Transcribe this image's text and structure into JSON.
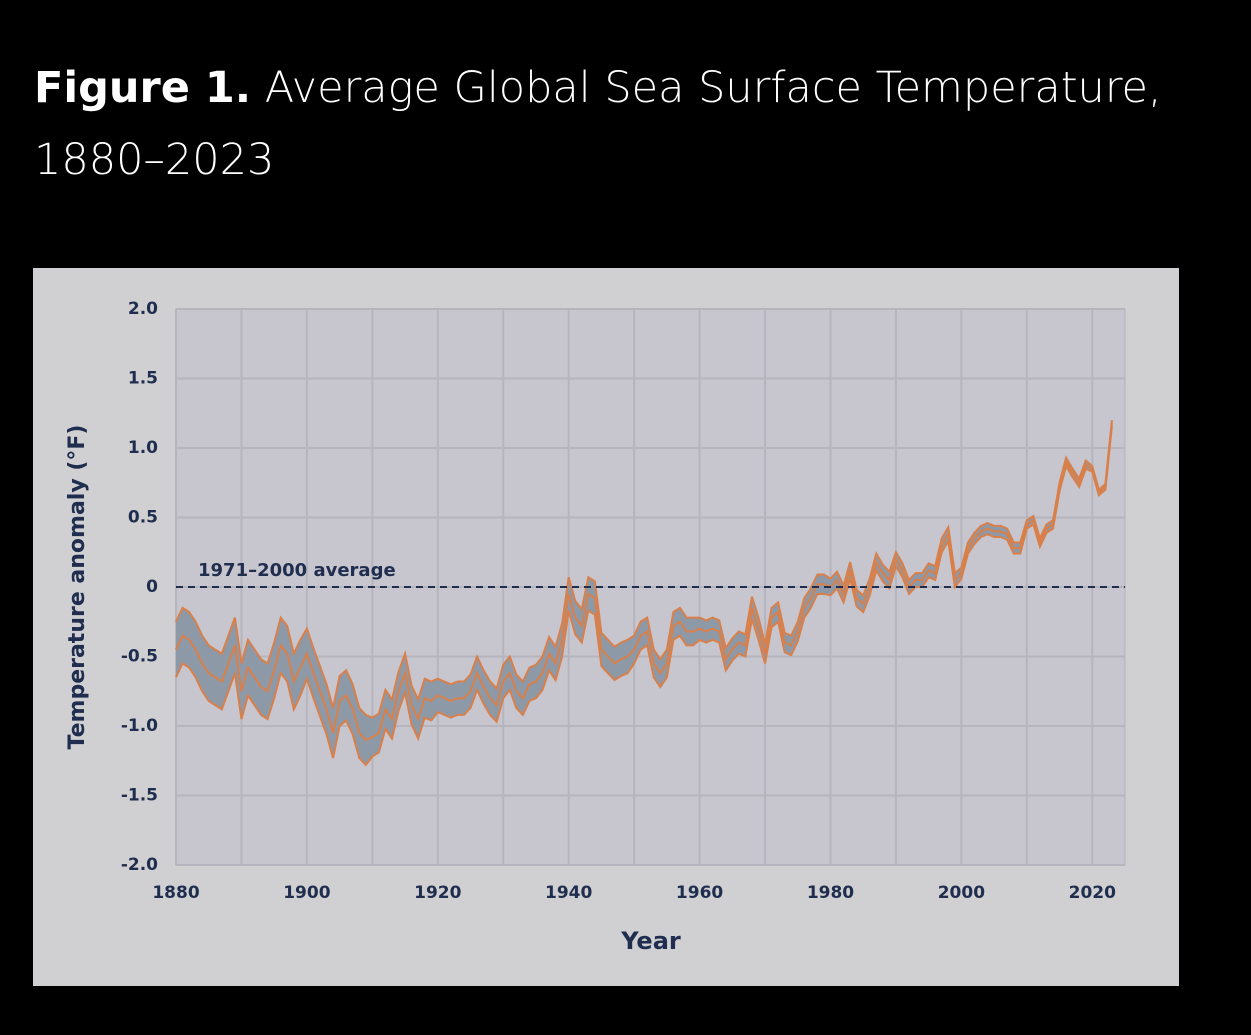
{
  "chart_data": {
    "type": "band-line",
    "title_prefix": "Figure 1.",
    "title": "Average Global Sea Surface Temperature, 1880–2023",
    "xlabel": "Year",
    "ylabel": "Temperature anomaly (°F)",
    "reference_line": {
      "value": 0,
      "label": "1971–2000 average"
    },
    "xlim": [
      1880,
      2025
    ],
    "ylim": [
      -2,
      2
    ],
    "xticks": [
      1880,
      1900,
      1920,
      1940,
      1960,
      1980,
      2000,
      2020
    ],
    "xminor": [
      1890,
      1910,
      1930,
      1950,
      1970,
      1990,
      2010
    ],
    "yticks": [
      {
        "value": -2,
        "label": "-2.0"
      },
      -1.5,
      {
        "value": -1,
        "label": "-1.0"
      },
      -0.5,
      0,
      0.5,
      {
        "value": 1,
        "label": "1.0"
      },
      1.5,
      {
        "value": 2,
        "label": "2.0"
      }
    ],
    "grid": true,
    "band_color": "#8e99a8",
    "x": [
      1880,
      1881,
      1882,
      1883,
      1884,
      1885,
      1886,
      1887,
      1888,
      1889,
      1890,
      1891,
      1892,
      1893,
      1894,
      1895,
      1896,
      1897,
      1898,
      1899,
      1900,
      1901,
      1902,
      1903,
      1904,
      1905,
      1906,
      1907,
      1908,
      1909,
      1910,
      1911,
      1912,
      1913,
      1914,
      1915,
      1916,
      1917,
      1918,
      1919,
      1920,
      1921,
      1922,
      1923,
      1924,
      1925,
      1926,
      1927,
      1928,
      1929,
      1930,
      1931,
      1932,
      1933,
      1934,
      1935,
      1936,
      1937,
      1938,
      1939,
      1940,
      1941,
      1942,
      1943,
      1944,
      1945,
      1946,
      1947,
      1948,
      1949,
      1950,
      1951,
      1952,
      1953,
      1954,
      1955,
      1956,
      1957,
      1958,
      1959,
      1960,
      1961,
      1962,
      1963,
      1964,
      1965,
      1966,
      1967,
      1968,
      1969,
      1970,
      1971,
      1972,
      1973,
      1974,
      1975,
      1976,
      1977,
      1978,
      1979,
      1980,
      1981,
      1982,
      1983,
      1984,
      1985,
      1986,
      1987,
      1988,
      1989,
      1990,
      1991,
      1992,
      1993,
      1994,
      1995,
      1996,
      1997,
      1998,
      1999,
      2000,
      2001,
      2002,
      2003,
      2004,
      2005,
      2006,
      2007,
      2008,
      2009,
      2010,
      2011,
      2012,
      2013,
      2014,
      2015,
      2016,
      2017,
      2018,
      2019,
      2020,
      2021,
      2022,
      2023
    ],
    "series": [
      {
        "color": "#d9804a",
        "values": [
          -0.45,
          -0.35,
          -0.38,
          -0.45,
          -0.55,
          -0.62,
          -0.65,
          -0.68,
          -0.55,
          -0.42,
          -0.75,
          -0.58,
          -0.65,
          -0.72,
          -0.75,
          -0.6,
          -0.42,
          -0.48,
          -0.68,
          -0.58,
          -0.48,
          -0.62,
          -0.75,
          -0.88,
          -1.05,
          -0.82,
          -0.78,
          -0.88,
          -1.05,
          -1.1,
          -1.08,
          -1.05,
          -0.88,
          -0.95,
          -0.75,
          -0.62,
          -0.85,
          -0.95,
          -0.8,
          -0.82,
          -0.78,
          -0.8,
          -0.82,
          -0.8,
          -0.8,
          -0.75,
          -0.62,
          -0.72,
          -0.8,
          -0.85,
          -0.68,
          -0.62,
          -0.75,
          -0.8,
          -0.7,
          -0.68,
          -0.62,
          -0.48,
          -0.55,
          -0.38,
          -0.05,
          -0.22,
          -0.28,
          -0.05,
          -0.08,
          -0.45,
          -0.5,
          -0.55,
          -0.52,
          -0.5,
          -0.45,
          -0.35,
          -0.32,
          -0.55,
          -0.62,
          -0.55,
          -0.28,
          -0.25,
          -0.32,
          -0.32,
          -0.3,
          -0.32,
          -0.3,
          -0.32,
          -0.52,
          -0.45,
          -0.4,
          -0.42,
          -0.15,
          -0.3,
          -0.48,
          -0.22,
          -0.18,
          -0.4,
          -0.42,
          -0.32,
          -0.15,
          -0.08,
          0.02,
          0.02,
          0.0,
          0.05,
          -0.05,
          0.12,
          -0.08,
          -0.12,
          0.0,
          0.18,
          0.1,
          0.05,
          0.2,
          0.12,
          0.0,
          0.05,
          0.05,
          0.12,
          0.1,
          0.3,
          0.38,
          0.05,
          0.1,
          0.28,
          0.35,
          0.4,
          0.42,
          0.4,
          0.4,
          0.38,
          0.28,
          0.28,
          0.45,
          0.48,
          0.32,
          0.42,
          0.45,
          0.72,
          0.9,
          0.82,
          0.75,
          0.88,
          0.85,
          0.68,
          0.72,
          1.18
        ]
      },
      {
        "color": "#d9804a",
        "values": [
          -0.25,
          -0.15,
          -0.18,
          -0.25,
          -0.35,
          -0.42,
          -0.45,
          -0.48,
          -0.35,
          -0.22,
          -0.55,
          -0.38,
          -0.45,
          -0.52,
          -0.55,
          -0.4,
          -0.22,
          -0.28,
          -0.48,
          -0.38,
          -0.3,
          -0.44,
          -0.57,
          -0.7,
          -0.87,
          -0.64,
          -0.6,
          -0.7,
          -0.87,
          -0.92,
          -0.94,
          -0.91,
          -0.74,
          -0.81,
          -0.61,
          -0.48,
          -0.71,
          -0.81,
          -0.66,
          -0.68,
          -0.66,
          -0.68,
          -0.7,
          -0.68,
          -0.68,
          -0.63,
          -0.5,
          -0.6,
          -0.68,
          -0.73,
          -0.56,
          -0.5,
          -0.63,
          -0.68,
          -0.58,
          -0.56,
          -0.5,
          -0.36,
          -0.43,
          -0.26,
          0.07,
          -0.1,
          -0.16,
          0.07,
          0.04,
          -0.33,
          -0.38,
          -0.43,
          -0.4,
          -0.38,
          -0.35,
          -0.25,
          -0.22,
          -0.45,
          -0.52,
          -0.45,
          -0.18,
          -0.15,
          -0.22,
          -0.22,
          -0.22,
          -0.24,
          -0.22,
          -0.24,
          -0.44,
          -0.37,
          -0.32,
          -0.34,
          -0.07,
          -0.22,
          -0.41,
          -0.15,
          -0.11,
          -0.33,
          -0.35,
          -0.25,
          -0.08,
          -0.01,
          0.09,
          0.09,
          0.06,
          0.11,
          0.01,
          0.18,
          -0.02,
          -0.06,
          0.06,
          0.24,
          0.16,
          0.11,
          0.25,
          0.17,
          0.05,
          0.1,
          0.1,
          0.17,
          0.15,
          0.35,
          0.43,
          0.1,
          0.14,
          0.32,
          0.39,
          0.44,
          0.46,
          0.44,
          0.44,
          0.42,
          0.32,
          0.32,
          0.48,
          0.51,
          0.35,
          0.45,
          0.48,
          0.75,
          0.93,
          0.85,
          0.78,
          0.91,
          0.87,
          0.7,
          0.74,
          1.2
        ]
      },
      {
        "color": "#d9804a",
        "values": [
          -0.65,
          -0.55,
          -0.58,
          -0.65,
          -0.75,
          -0.82,
          -0.85,
          -0.88,
          -0.75,
          -0.62,
          -0.95,
          -0.78,
          -0.85,
          -0.92,
          -0.95,
          -0.8,
          -0.62,
          -0.68,
          -0.88,
          -0.78,
          -0.66,
          -0.8,
          -0.93,
          -1.06,
          -1.23,
          -1.0,
          -0.96,
          -1.06,
          -1.23,
          -1.28,
          -1.22,
          -1.19,
          -1.02,
          -1.09,
          -0.89,
          -0.76,
          -0.99,
          -1.09,
          -0.94,
          -0.96,
          -0.9,
          -0.92,
          -0.94,
          -0.92,
          -0.92,
          -0.87,
          -0.74,
          -0.84,
          -0.92,
          -0.97,
          -0.8,
          -0.74,
          -0.87,
          -0.92,
          -0.82,
          -0.8,
          -0.74,
          -0.6,
          -0.67,
          -0.5,
          -0.17,
          -0.34,
          -0.4,
          -0.17,
          -0.2,
          -0.57,
          -0.62,
          -0.67,
          -0.64,
          -0.62,
          -0.55,
          -0.45,
          -0.42,
          -0.65,
          -0.72,
          -0.65,
          -0.38,
          -0.35,
          -0.42,
          -0.42,
          -0.38,
          -0.4,
          -0.38,
          -0.4,
          -0.6,
          -0.53,
          -0.48,
          -0.5,
          -0.23,
          -0.38,
          -0.55,
          -0.29,
          -0.25,
          -0.47,
          -0.49,
          -0.39,
          -0.22,
          -0.15,
          -0.05,
          -0.05,
          -0.06,
          -0.01,
          -0.11,
          0.06,
          -0.14,
          -0.18,
          -0.06,
          0.12,
          0.04,
          -0.01,
          0.15,
          0.07,
          -0.05,
          0.0,
          0.0,
          0.07,
          0.05,
          0.25,
          0.33,
          0.0,
          0.06,
          0.24,
          0.31,
          0.36,
          0.38,
          0.36,
          0.36,
          0.34,
          0.24,
          0.24,
          0.42,
          0.45,
          0.29,
          0.39,
          0.42,
          0.69,
          0.87,
          0.79,
          0.72,
          0.85,
          0.83,
          0.66,
          0.7,
          1.16
        ]
      }
    ]
  }
}
